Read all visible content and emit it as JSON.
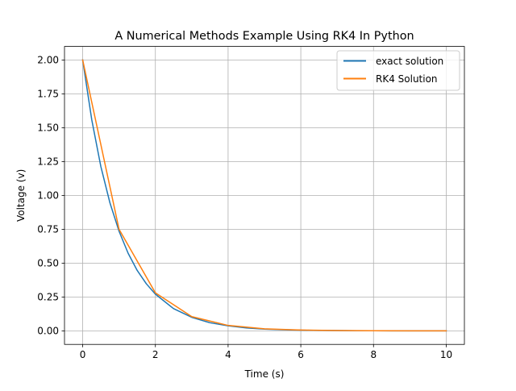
{
  "chart_data": {
    "type": "line",
    "title": "A Numerical Methods Example Using RK4 In Python",
    "xlabel": "Time (s)",
    "ylabel": "Voltage (v)",
    "xlim": [
      -0.5,
      10.5
    ],
    "ylim": [
      -0.1,
      2.1
    ],
    "xticks": [
      0,
      2,
      4,
      6,
      8,
      10
    ],
    "xtick_labels": [
      "0",
      "2",
      "4",
      "6",
      "8",
      "10"
    ],
    "yticks": [
      0.0,
      0.25,
      0.5,
      0.75,
      1.0,
      1.25,
      1.5,
      1.75,
      2.0
    ],
    "ytick_labels": [
      "0.00",
      "0.25",
      "0.50",
      "0.75",
      "1.00",
      "1.25",
      "1.50",
      "1.75",
      "2.00"
    ],
    "grid": true,
    "legend_position": "top-right",
    "series": [
      {
        "name": "exact solution",
        "color": "#1f77b4",
        "x": [
          0,
          0.25,
          0.5,
          0.75,
          1,
          1.25,
          1.5,
          1.75,
          2,
          2.5,
          3,
          3.5,
          4,
          4.5,
          5,
          5.5,
          6,
          6.5,
          7,
          7.5,
          8,
          8.5,
          9,
          9.5,
          10
        ],
        "y": [
          2.0,
          1.558,
          1.213,
          0.945,
          0.736,
          0.573,
          0.446,
          0.348,
          0.271,
          0.164,
          0.1,
          0.06,
          0.037,
          0.022,
          0.013,
          0.008,
          0.005,
          0.003,
          0.002,
          0.001,
          0.001,
          0.0,
          0.0,
          0.0,
          0.0
        ]
      },
      {
        "name": "RK4 Solution",
        "color": "#ff7f0e",
        "x": [
          0,
          1,
          2,
          3,
          4,
          5,
          6,
          7,
          8,
          9,
          10
        ],
        "y": [
          2.0,
          0.75,
          0.281,
          0.105,
          0.04,
          0.015,
          0.006,
          0.002,
          0.001,
          0.0,
          0.0
        ]
      }
    ]
  }
}
